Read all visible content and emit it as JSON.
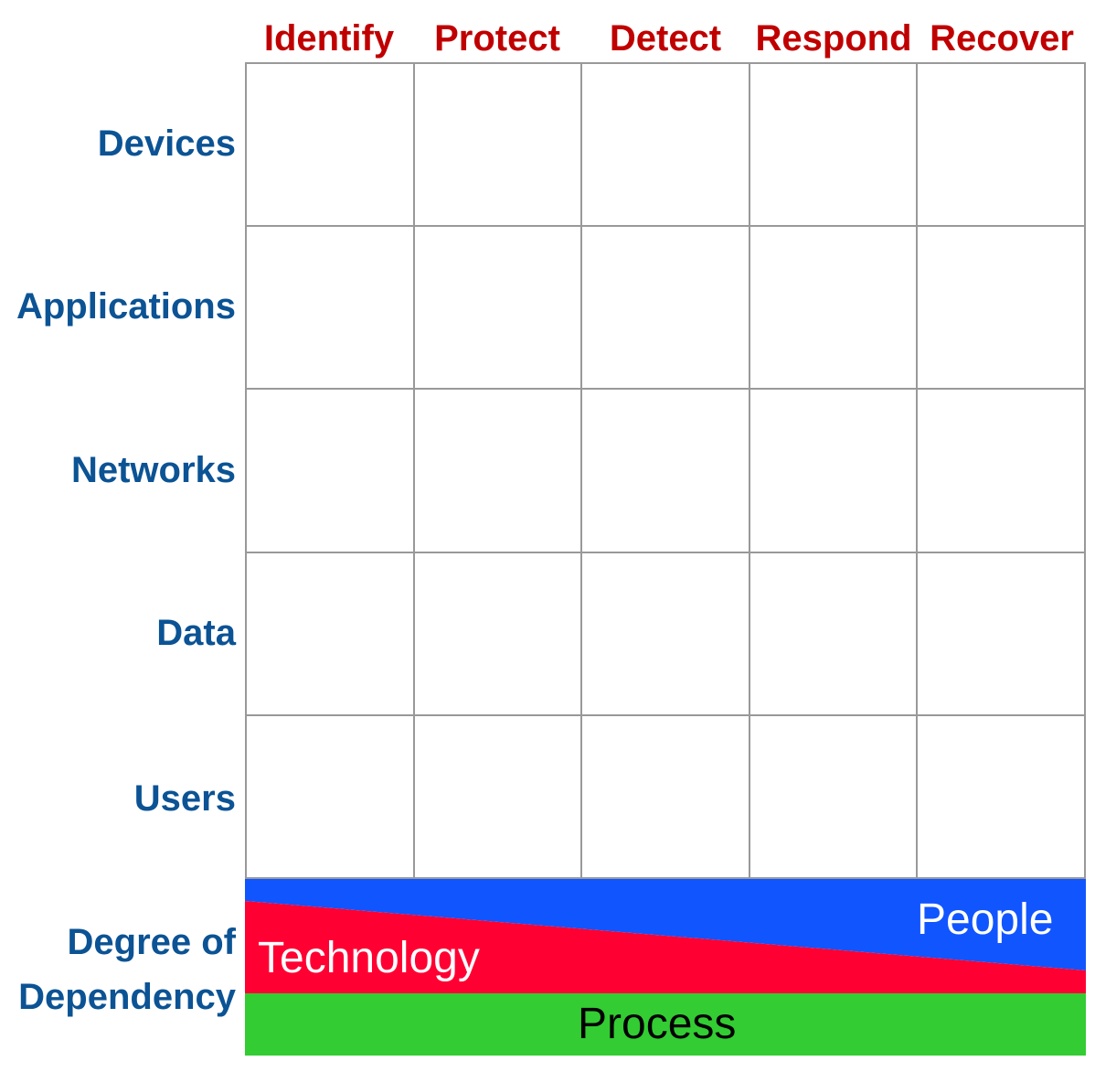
{
  "columns": [
    "Identify",
    "Protect",
    "Detect",
    "Respond",
    "Recover"
  ],
  "rows": [
    "Devices",
    "Applications",
    "Networks",
    "Data",
    "Users"
  ],
  "dependency": {
    "title_line1": "Degree of",
    "title_line2": "Dependency",
    "people_label": "People",
    "technology_label": "Technology",
    "process_label": "Process"
  },
  "colors": {
    "column_header": "#c00000",
    "row_header": "#0b5394",
    "people": "#1155ff",
    "technology": "#ff0033",
    "process": "#33cc33",
    "grid_line": "#999999"
  }
}
